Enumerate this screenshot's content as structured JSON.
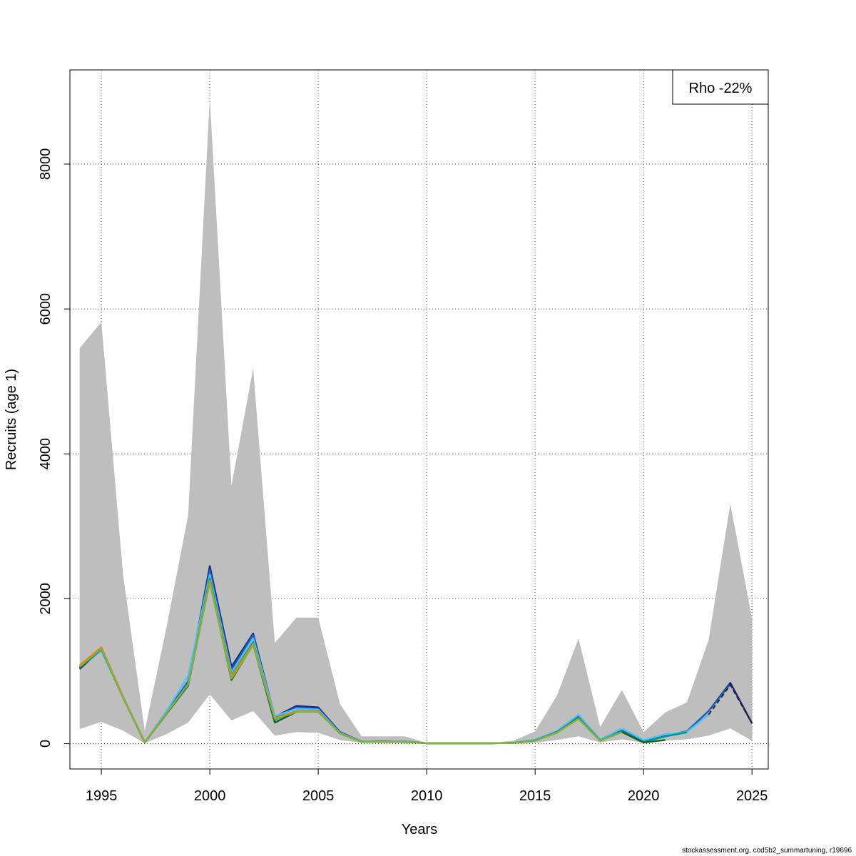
{
  "chart_data": {
    "type": "line",
    "xlabel": "Years",
    "ylabel": "Recruits (age 1)",
    "xlim": [
      1993.55,
      2025.75
    ],
    "ylim": [
      -350,
      9300
    ],
    "x_ticks": [
      1995,
      2000,
      2005,
      2010,
      2015,
      2020,
      2025
    ],
    "y_ticks": [
      0,
      2000,
      4000,
      6000,
      8000
    ],
    "grid": true,
    "legend": {
      "position": "top-right",
      "text": "Rho -22%"
    },
    "confidence_band": {
      "x": [
        1994,
        1995,
        1996,
        1997,
        1998,
        1999,
        2000,
        2001,
        2002,
        2003,
        2004,
        2005,
        2006,
        2007,
        2008,
        2009,
        2010,
        2011,
        2012,
        2013,
        2014,
        2015,
        2016,
        2017,
        2018,
        2019,
        2020,
        2021,
        2022,
        2023,
        2024,
        2025
      ],
      "lower": [
        200,
        300,
        180,
        5,
        130,
        290,
        680,
        320,
        450,
        110,
        160,
        150,
        50,
        10,
        5,
        5,
        2,
        1,
        1,
        1,
        2,
        10,
        50,
        100,
        15,
        60,
        10,
        40,
        60,
        110,
        210,
        40
      ],
      "upper": [
        5460,
        5820,
        2330,
        180,
        1600,
        3150,
        8910,
        3560,
        5180,
        1390,
        1740,
        1740,
        550,
        100,
        100,
        100,
        10,
        5,
        5,
        10,
        40,
        170,
        660,
        1450,
        230,
        740,
        160,
        430,
        570,
        1430,
        3310,
        1730
      ],
      "color": "#bebebe"
    },
    "series": [
      {
        "color": "#1a237e",
        "x": [
          1994,
          1995,
          1996,
          1997,
          1998,
          1999,
          2000,
          2001,
          2002,
          2003,
          2004,
          2005,
          2006,
          2007,
          2008,
          2009,
          2010,
          2011,
          2012,
          2013,
          2014,
          2015,
          2016,
          2017,
          2018,
          2019,
          2020,
          2021,
          2022,
          2023,
          2024,
          2025
        ],
        "values": [
          1030,
          1300,
          640,
          15,
          420,
          840,
          2450,
          1060,
          1520,
          370,
          520,
          500,
          160,
          30,
          35,
          30,
          5,
          5,
          5,
          5,
          10,
          50,
          170,
          380,
          50,
          180,
          30,
          110,
          170,
          450,
          840,
          280
        ]
      },
      {
        "color": "#1565c0",
        "x": [
          1994,
          1995,
          1996,
          1997,
          1998,
          1999,
          2000,
          2001,
          2002,
          2003,
          2004,
          2005,
          2006,
          2007,
          2008,
          2009,
          2010,
          2011,
          2012,
          2013,
          2014,
          2015,
          2016,
          2017,
          2018,
          2019,
          2020,
          2021,
          2022,
          2023,
          2024
        ],
        "values": [
          1040,
          1290,
          640,
          15,
          430,
          860,
          2400,
          1020,
          1500,
          360,
          500,
          480,
          155,
          30,
          35,
          30,
          5,
          5,
          5,
          5,
          10,
          50,
          170,
          380,
          50,
          180,
          35,
          115,
          170,
          450,
          820
        ]
      },
      {
        "color": "#4fc3f7",
        "x": [
          1994,
          1995,
          1996,
          1997,
          1998,
          1999,
          2000,
          2001,
          2002,
          2003,
          2004,
          2005,
          2006,
          2007,
          2008,
          2009,
          2010,
          2011,
          2012,
          2013,
          2014,
          2015,
          2016,
          2017,
          2018,
          2019,
          2020,
          2021,
          2022,
          2023
        ],
        "values": [
          1050,
          1280,
          640,
          15,
          450,
          930,
          2330,
          980,
          1450,
          380,
          480,
          470,
          150,
          30,
          35,
          30,
          5,
          5,
          5,
          5,
          10,
          55,
          175,
          400,
          55,
          210,
          50,
          130,
          160,
          400
        ]
      },
      {
        "color": "#009688",
        "x": [
          1994,
          1995,
          1996,
          1997,
          1998,
          1999,
          2000,
          2001,
          2002,
          2003,
          2004,
          2005,
          2006,
          2007,
          2008,
          2009,
          2010,
          2011,
          2012,
          2013,
          2014,
          2015,
          2016,
          2017,
          2018,
          2019,
          2020,
          2021,
          2022
        ],
        "values": [
          1050,
          1300,
          640,
          15,
          420,
          820,
          2280,
          940,
          1400,
          330,
          450,
          450,
          145,
          25,
          30,
          25,
          5,
          5,
          5,
          5,
          10,
          45,
          160,
          360,
          45,
          170,
          25,
          100,
          155
        ]
      },
      {
        "color": "#1b5e20",
        "x": [
          1994,
          1995,
          1996,
          1997,
          1998,
          1999,
          2000,
          2001,
          2002,
          2003,
          2004,
          2005,
          2006,
          2007,
          2008,
          2009,
          2010,
          2011,
          2012,
          2013,
          2014,
          2015,
          2016,
          2017,
          2018,
          2019,
          2020,
          2021
        ],
        "values": [
          1040,
          1310,
          640,
          15,
          410,
          800,
          2250,
          880,
          1370,
          290,
          440,
          450,
          140,
          25,
          30,
          25,
          5,
          5,
          5,
          5,
          8,
          40,
          150,
          350,
          40,
          160,
          15,
          50
        ]
      },
      {
        "color": "#f57c00",
        "x": [
          1994,
          1995,
          1996,
          1997,
          1998,
          1999,
          2000,
          2001,
          2002,
          2003,
          2004,
          2005,
          2006,
          2007,
          2008,
          2009,
          2010,
          2011,
          2012,
          2013,
          2014,
          2015,
          2016,
          2017,
          2018,
          2019
        ],
        "values": [
          1080,
          1330,
          650,
          15,
          420,
          820,
          2250,
          930,
          1380,
          350,
          450,
          450,
          140,
          25,
          30,
          25,
          5,
          5,
          5,
          5,
          8,
          40,
          150,
          345,
          40,
          160
        ]
      },
      {
        "color": "#7cb342",
        "x": [
          1994,
          1995,
          1996,
          1997,
          1998,
          1999,
          2000,
          2001,
          2002,
          2003,
          2004,
          2005,
          2006,
          2007,
          2008,
          2009,
          2010,
          2011,
          2012,
          2013,
          2014,
          2015,
          2016,
          2017,
          2018,
          2019
        ],
        "values": [
          1060,
          1310,
          640,
          15,
          420,
          820,
          2220,
          900,
          1360,
          340,
          440,
          440,
          140,
          25,
          30,
          25,
          5,
          5,
          5,
          5,
          8,
          40,
          150,
          340,
          40,
          160
        ]
      }
    ],
    "forecast": {
      "color": "#222222",
      "style": "dashed",
      "x": [
        2023,
        2024,
        2025
      ],
      "values": [
        400,
        810,
        280
      ]
    }
  },
  "footer": "stockassessment.org, cod5b2_summartuning, r19696"
}
